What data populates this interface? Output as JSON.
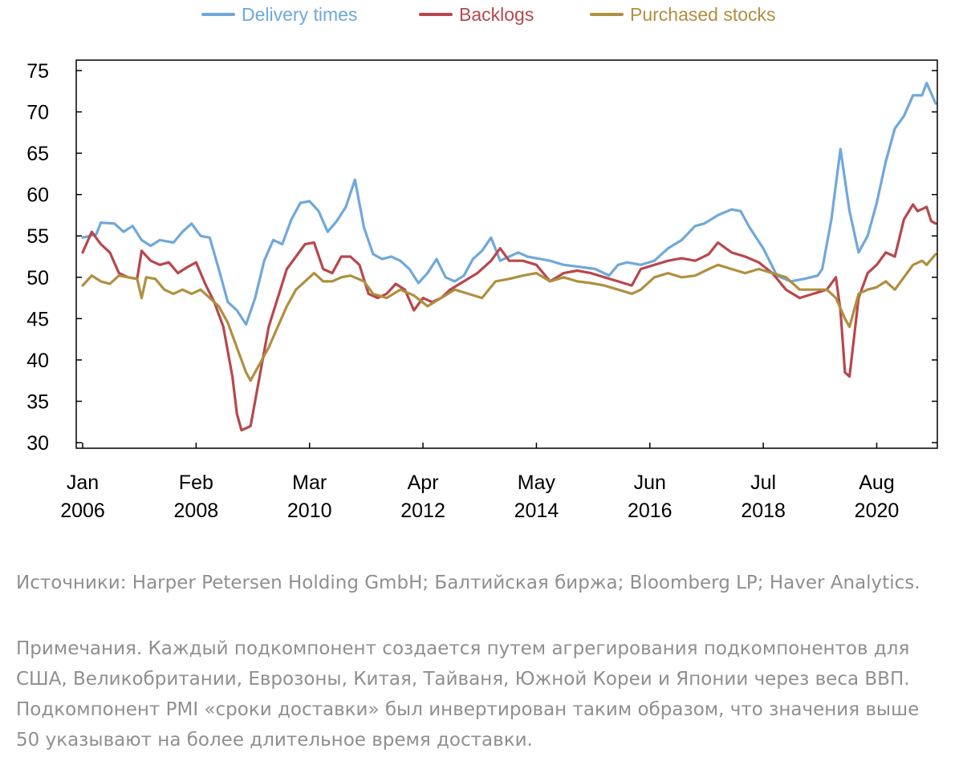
{
  "chart_data": {
    "type": "line",
    "title": "",
    "xlabel": "",
    "ylabel": "",
    "ylim": [
      30,
      75
    ],
    "yticks": [
      30,
      35,
      40,
      45,
      50,
      55,
      60,
      65,
      70,
      75
    ],
    "xlim": [
      "2006-01",
      "2021-09"
    ],
    "xticks": [
      {
        "month": "Jan",
        "year": "2006",
        "date": "2006-01"
      },
      {
        "month": "Feb",
        "year": "2008",
        "date": "2008-02"
      },
      {
        "month": "Mar",
        "year": "2010",
        "date": "2010-03"
      },
      {
        "month": "Apr",
        "year": "2012",
        "date": "2012-04"
      },
      {
        "month": "May",
        "year": "2014",
        "date": "2014-05"
      },
      {
        "month": "Jun",
        "year": "2016",
        "date": "2016-06"
      },
      {
        "month": "Jul",
        "year": "2018",
        "date": "2018-07"
      },
      {
        "month": "Aug",
        "year": "2020",
        "date": "2020-08"
      }
    ],
    "legend_position": "top",
    "grid": false,
    "series": [
      {
        "name": "Delivery times",
        "color": "#6fa8dc",
        "points": [
          [
            "2006-01",
            54.8
          ],
          [
            "2006-04",
            55.2
          ],
          [
            "2006-05",
            56.6
          ],
          [
            "2006-08",
            56.5
          ],
          [
            "2006-10",
            55.5
          ],
          [
            "2006-12",
            56.2
          ],
          [
            "2007-02",
            54.5
          ],
          [
            "2007-04",
            53.8
          ],
          [
            "2007-06",
            54.5
          ],
          [
            "2007-09",
            54.2
          ],
          [
            "2007-11",
            55.5
          ],
          [
            "2008-01",
            56.5
          ],
          [
            "2008-03",
            55.0
          ],
          [
            "2008-05",
            54.8
          ],
          [
            "2008-07",
            51.0
          ],
          [
            "2008-09",
            47.0
          ],
          [
            "2008-11",
            46.0
          ],
          [
            "2009-01",
            44.3
          ],
          [
            "2009-03",
            47.5
          ],
          [
            "2009-05",
            52.0
          ],
          [
            "2009-07",
            54.5
          ],
          [
            "2009-09",
            54.0
          ],
          [
            "2009-11",
            57.0
          ],
          [
            "2010-01",
            59.0
          ],
          [
            "2010-03",
            59.2
          ],
          [
            "2010-05",
            58.0
          ],
          [
            "2010-07",
            55.5
          ],
          [
            "2010-09",
            56.8
          ],
          [
            "2010-11",
            58.5
          ],
          [
            "2011-01",
            61.8
          ],
          [
            "2011-03",
            56.0
          ],
          [
            "2011-05",
            52.8
          ],
          [
            "2011-07",
            52.2
          ],
          [
            "2011-09",
            52.5
          ],
          [
            "2011-11",
            52.0
          ],
          [
            "2012-01",
            51.0
          ],
          [
            "2012-03",
            49.3
          ],
          [
            "2012-05",
            50.5
          ],
          [
            "2012-07",
            52.2
          ],
          [
            "2012-09",
            50.0
          ],
          [
            "2012-11",
            49.5
          ],
          [
            "2013-01",
            50.2
          ],
          [
            "2013-03",
            52.2
          ],
          [
            "2013-05",
            53.2
          ],
          [
            "2013-07",
            54.8
          ],
          [
            "2013-09",
            52.0
          ],
          [
            "2013-11",
            52.5
          ],
          [
            "2014-01",
            53.0
          ],
          [
            "2014-03",
            52.5
          ],
          [
            "2014-05",
            52.3
          ],
          [
            "2014-08",
            52.0
          ],
          [
            "2014-11",
            51.5
          ],
          [
            "2015-02",
            51.3
          ],
          [
            "2015-06",
            51.0
          ],
          [
            "2015-09",
            50.2
          ],
          [
            "2015-11",
            51.5
          ],
          [
            "2016-01",
            51.8
          ],
          [
            "2016-04",
            51.5
          ],
          [
            "2016-07",
            52.0
          ],
          [
            "2016-10",
            53.5
          ],
          [
            "2017-01",
            54.5
          ],
          [
            "2017-04",
            56.2
          ],
          [
            "2017-06",
            56.5
          ],
          [
            "2017-09",
            57.5
          ],
          [
            "2017-12",
            58.2
          ],
          [
            "2018-02",
            58.0
          ],
          [
            "2018-04",
            56.0
          ],
          [
            "2018-07",
            53.5
          ],
          [
            "2018-10",
            50.2
          ],
          [
            "2019-01",
            49.5
          ],
          [
            "2019-04",
            49.8
          ],
          [
            "2019-07",
            50.2
          ],
          [
            "2019-08",
            51.0
          ],
          [
            "2019-10",
            57.0
          ],
          [
            "2019-12",
            65.5
          ],
          [
            "2020-02",
            58.0
          ],
          [
            "2020-04",
            53.0
          ],
          [
            "2020-06",
            55.0
          ],
          [
            "2020-08",
            59.0
          ],
          [
            "2020-10",
            64.0
          ],
          [
            "2020-12",
            68.0
          ],
          [
            "2021-02",
            69.5
          ],
          [
            "2021-04",
            72.0
          ],
          [
            "2021-06",
            72.0
          ],
          [
            "2021-07",
            73.5
          ],
          [
            "2021-09",
            71.0
          ]
        ]
      },
      {
        "name": "Backlogs",
        "color": "#b8474c",
        "points": [
          [
            "2006-01",
            53.0
          ],
          [
            "2006-03",
            55.5
          ],
          [
            "2006-05",
            54.0
          ],
          [
            "2006-07",
            53.0
          ],
          [
            "2006-09",
            50.5
          ],
          [
            "2006-11",
            50.0
          ],
          [
            "2007-01",
            49.8
          ],
          [
            "2007-02",
            53.2
          ],
          [
            "2007-04",
            52.0
          ],
          [
            "2007-06",
            51.5
          ],
          [
            "2007-08",
            51.8
          ],
          [
            "2007-10",
            50.5
          ],
          [
            "2007-12",
            51.2
          ],
          [
            "2008-02",
            51.8
          ],
          [
            "2008-04",
            49.2
          ],
          [
            "2008-06",
            47.0
          ],
          [
            "2008-08",
            44.0
          ],
          [
            "2008-10",
            38.0
          ],
          [
            "2008-11",
            33.5
          ],
          [
            "2008-12",
            31.5
          ],
          [
            "2009-02",
            32.0
          ],
          [
            "2009-04",
            38.0
          ],
          [
            "2009-06",
            44.0
          ],
          [
            "2009-08",
            47.5
          ],
          [
            "2009-10",
            51.0
          ],
          [
            "2009-12",
            52.5
          ],
          [
            "2010-02",
            54.0
          ],
          [
            "2010-04",
            54.2
          ],
          [
            "2010-06",
            51.0
          ],
          [
            "2010-08",
            50.5
          ],
          [
            "2010-10",
            52.5
          ],
          [
            "2010-12",
            52.5
          ],
          [
            "2011-02",
            51.5
          ],
          [
            "2011-04",
            48.0
          ],
          [
            "2011-06",
            47.5
          ],
          [
            "2011-08",
            48.0
          ],
          [
            "2011-10",
            49.2
          ],
          [
            "2011-12",
            48.5
          ],
          [
            "2012-02",
            46.0
          ],
          [
            "2012-04",
            47.5
          ],
          [
            "2012-06",
            47.0
          ],
          [
            "2012-08",
            47.5
          ],
          [
            "2012-10",
            48.5
          ],
          [
            "2013-01",
            49.5
          ],
          [
            "2013-04",
            50.5
          ],
          [
            "2013-07",
            52.0
          ],
          [
            "2013-09",
            53.5
          ],
          [
            "2013-11",
            52.0
          ],
          [
            "2014-02",
            52.0
          ],
          [
            "2014-05",
            51.5
          ],
          [
            "2014-08",
            49.5
          ],
          [
            "2014-11",
            50.5
          ],
          [
            "2015-02",
            50.8
          ],
          [
            "2015-05",
            50.5
          ],
          [
            "2015-08",
            50.0
          ],
          [
            "2015-11",
            49.5
          ],
          [
            "2016-02",
            49.0
          ],
          [
            "2016-04",
            51.0
          ],
          [
            "2016-07",
            51.5
          ],
          [
            "2016-10",
            52.0
          ],
          [
            "2017-01",
            52.3
          ],
          [
            "2017-04",
            52.0
          ],
          [
            "2017-07",
            52.8
          ],
          [
            "2017-09",
            54.2
          ],
          [
            "2017-12",
            53.0
          ],
          [
            "2018-03",
            52.5
          ],
          [
            "2018-06",
            51.8
          ],
          [
            "2018-09",
            50.5
          ],
          [
            "2018-12",
            48.5
          ],
          [
            "2019-03",
            47.5
          ],
          [
            "2019-06",
            48.0
          ],
          [
            "2019-09",
            48.5
          ],
          [
            "2019-11",
            50.0
          ],
          [
            "2019-12",
            46.0
          ],
          [
            "2020-01",
            38.5
          ],
          [
            "2020-02",
            38.0
          ],
          [
            "2020-04",
            47.5
          ],
          [
            "2020-06",
            50.5
          ],
          [
            "2020-08",
            51.5
          ],
          [
            "2020-10",
            53.0
          ],
          [
            "2020-12",
            52.5
          ],
          [
            "2021-02",
            57.0
          ],
          [
            "2021-04",
            58.8
          ],
          [
            "2021-05",
            58.0
          ],
          [
            "2021-07",
            58.5
          ],
          [
            "2021-08",
            56.8
          ],
          [
            "2021-09",
            56.5
          ]
        ]
      },
      {
        "name": "Purchased stocks",
        "color": "#b08f3f",
        "points": [
          [
            "2006-01",
            49.0
          ],
          [
            "2006-03",
            50.2
          ],
          [
            "2006-05",
            49.5
          ],
          [
            "2006-07",
            49.2
          ],
          [
            "2006-09",
            50.2
          ],
          [
            "2006-11",
            50.0
          ],
          [
            "2007-01",
            49.8
          ],
          [
            "2007-02",
            47.5
          ],
          [
            "2007-03",
            50.0
          ],
          [
            "2007-05",
            49.8
          ],
          [
            "2007-07",
            48.5
          ],
          [
            "2007-09",
            48.0
          ],
          [
            "2007-11",
            48.5
          ],
          [
            "2008-01",
            48.0
          ],
          [
            "2008-03",
            48.5
          ],
          [
            "2008-05",
            47.5
          ],
          [
            "2008-07",
            46.5
          ],
          [
            "2008-09",
            44.5
          ],
          [
            "2008-11",
            41.5
          ],
          [
            "2009-01",
            38.5
          ],
          [
            "2009-02",
            37.5
          ],
          [
            "2009-04",
            39.5
          ],
          [
            "2009-06",
            41.5
          ],
          [
            "2009-08",
            44.0
          ],
          [
            "2009-10",
            46.5
          ],
          [
            "2009-12",
            48.5
          ],
          [
            "2010-02",
            49.5
          ],
          [
            "2010-04",
            50.5
          ],
          [
            "2010-06",
            49.5
          ],
          [
            "2010-08",
            49.5
          ],
          [
            "2010-10",
            50.0
          ],
          [
            "2010-12",
            50.2
          ],
          [
            "2011-03",
            49.5
          ],
          [
            "2011-05",
            48.0
          ],
          [
            "2011-08",
            47.5
          ],
          [
            "2011-11",
            48.5
          ],
          [
            "2012-02",
            47.8
          ],
          [
            "2012-05",
            46.5
          ],
          [
            "2012-08",
            47.5
          ],
          [
            "2012-11",
            48.5
          ],
          [
            "2013-02",
            48.0
          ],
          [
            "2013-05",
            47.5
          ],
          [
            "2013-08",
            49.5
          ],
          [
            "2013-11",
            49.8
          ],
          [
            "2014-02",
            50.2
          ],
          [
            "2014-05",
            50.5
          ],
          [
            "2014-08",
            49.5
          ],
          [
            "2014-11",
            50.0
          ],
          [
            "2015-02",
            49.5
          ],
          [
            "2015-05",
            49.3
          ],
          [
            "2015-08",
            49.0
          ],
          [
            "2015-11",
            48.5
          ],
          [
            "2016-02",
            48.0
          ],
          [
            "2016-04",
            48.5
          ],
          [
            "2016-07",
            50.0
          ],
          [
            "2016-10",
            50.5
          ],
          [
            "2017-01",
            50.0
          ],
          [
            "2017-04",
            50.2
          ],
          [
            "2017-07",
            51.0
          ],
          [
            "2017-09",
            51.5
          ],
          [
            "2017-12",
            51.0
          ],
          [
            "2018-03",
            50.5
          ],
          [
            "2018-06",
            51.0
          ],
          [
            "2018-09",
            50.5
          ],
          [
            "2018-12",
            50.0
          ],
          [
            "2019-03",
            48.5
          ],
          [
            "2019-06",
            48.5
          ],
          [
            "2019-09",
            48.5
          ],
          [
            "2019-11",
            47.5
          ],
          [
            "2020-01",
            45.0
          ],
          [
            "2020-02",
            44.0
          ],
          [
            "2020-04",
            48.0
          ],
          [
            "2020-06",
            48.5
          ],
          [
            "2020-08",
            48.8
          ],
          [
            "2020-10",
            49.5
          ],
          [
            "2020-12",
            48.5
          ],
          [
            "2021-02",
            50.0
          ],
          [
            "2021-04",
            51.5
          ],
          [
            "2021-06",
            52.0
          ],
          [
            "2021-07",
            51.5
          ],
          [
            "2021-09",
            52.8
          ]
        ]
      }
    ]
  },
  "notes": {
    "sources": "Источники: Harper Petersen Holding GmbH; Балтийская биржа; Bloomberg LP; Haver Analytics.",
    "note": "Примечания. Каждый подкомпонент создается путем агрегирования подкомпонентов для США, Великобритании, Еврозоны, Китая, Тайваня, Южной Кореи и Японии через веса ВВП. Подкомпонент PMI «сроки доставки» был инвертирован таким образом, что значения выше 50 указывают на более длительное время доставки."
  }
}
